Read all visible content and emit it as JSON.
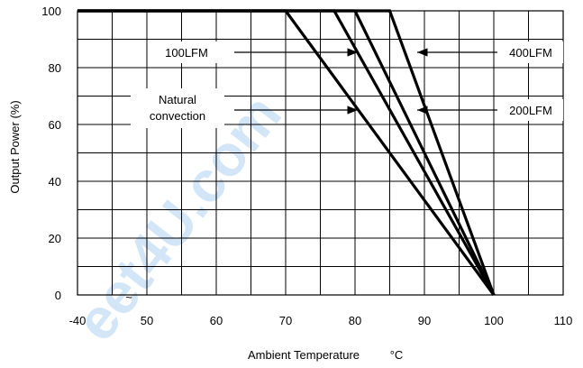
{
  "chart_data": {
    "type": "line",
    "title": "",
    "xlabel": "Ambient Temperature",
    "xunit": "°C",
    "ylabel": "Output Power  (%)",
    "xlim": [
      -40,
      110
    ],
    "ylim": [
      0,
      100
    ],
    "x_axis_break": "~",
    "x_ticks": [
      "-40",
      "50",
      "60",
      "70",
      "80",
      "90",
      "100",
      "110"
    ],
    "y_ticks": [
      "0",
      "20",
      "40",
      "60",
      "80",
      "100"
    ],
    "grid": true,
    "series": [
      {
        "name": "Natural convection",
        "x": [
          -40,
          70,
          100
        ],
        "y": [
          100,
          100,
          0
        ]
      },
      {
        "name": "100LFM",
        "x": [
          -40,
          77,
          100
        ],
        "y": [
          100,
          100,
          0
        ]
      },
      {
        "name": "200LFM",
        "x": [
          -40,
          80,
          100
        ],
        "y": [
          100,
          100,
          0
        ]
      },
      {
        "name": "400LFM",
        "x": [
          -40,
          85,
          100
        ],
        "y": [
          100,
          100,
          0
        ]
      }
    ],
    "annotations": [
      {
        "lines": [
          "100LFM"
        ],
        "points_to": "100LFM"
      },
      {
        "lines": [
          "Natural",
          "convection"
        ],
        "points_to": "100LFM"
      },
      {
        "lines": [
          "400LFM"
        ],
        "points_to": "400LFM"
      },
      {
        "lines": [
          "200LFM"
        ],
        "points_to": "200LFM"
      }
    ],
    "watermark": "eet4U.com"
  }
}
